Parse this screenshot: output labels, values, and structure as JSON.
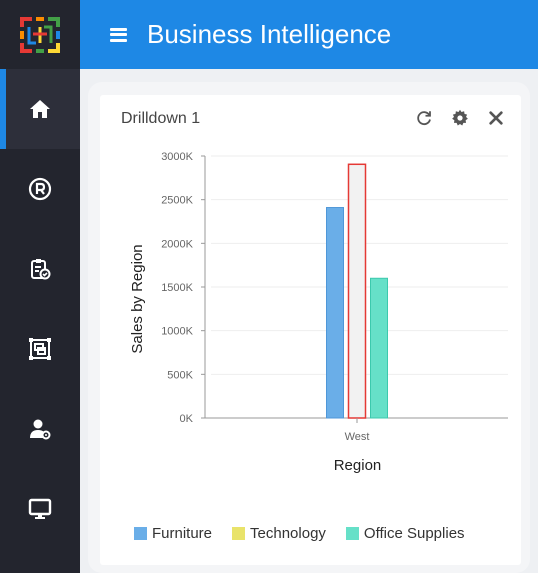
{
  "header": {
    "title": "Business Intelligence"
  },
  "sidebar": {
    "items": [
      {
        "name": "home",
        "icon": "home-icon",
        "active": true
      },
      {
        "name": "registered",
        "icon": "registered-icon",
        "active": false
      },
      {
        "name": "tasks",
        "icon": "clipboard-check-icon",
        "active": false
      },
      {
        "name": "designer",
        "icon": "layout-frame-icon",
        "active": false
      },
      {
        "name": "user-settings",
        "icon": "user-gear-icon",
        "active": false
      },
      {
        "name": "display",
        "icon": "monitor-icon",
        "active": false
      }
    ]
  },
  "card": {
    "title": "Drilldown 1",
    "tools": [
      "refresh-icon",
      "gear-icon",
      "close-icon"
    ]
  },
  "colors": {
    "accent": "#1e88e5",
    "sidebar": "#23252e"
  },
  "chart_data": {
    "type": "bar",
    "categories": [
      "West"
    ],
    "series": [
      {
        "name": "Furniture",
        "values": [
          2410000
        ],
        "color": "#6aaee8",
        "border": "#4f97d8"
      },
      {
        "name": "Technology",
        "values": [
          2905000
        ],
        "color": "#f2f2f2",
        "border": "#e53935"
      },
      {
        "name": "Office Supplies",
        "values": [
          1600000
        ],
        "color": "#66e0c8",
        "border": "#3cc9ad"
      }
    ],
    "legend": [
      {
        "name": "Furniture",
        "color": "#6aaee8"
      },
      {
        "name": "Technology",
        "color": "#e9e36a"
      },
      {
        "name": "Office Supplies",
        "color": "#66e0c8"
      }
    ],
    "yticks": [
      "0K",
      "500K",
      "1000K",
      "1500K",
      "2000K",
      "2500K",
      "3000K"
    ],
    "ylim": [
      0,
      3000000
    ],
    "xlabel": "Region",
    "ylabel": "Sales by Region",
    "grid": true,
    "legend_placement": "bottom"
  }
}
